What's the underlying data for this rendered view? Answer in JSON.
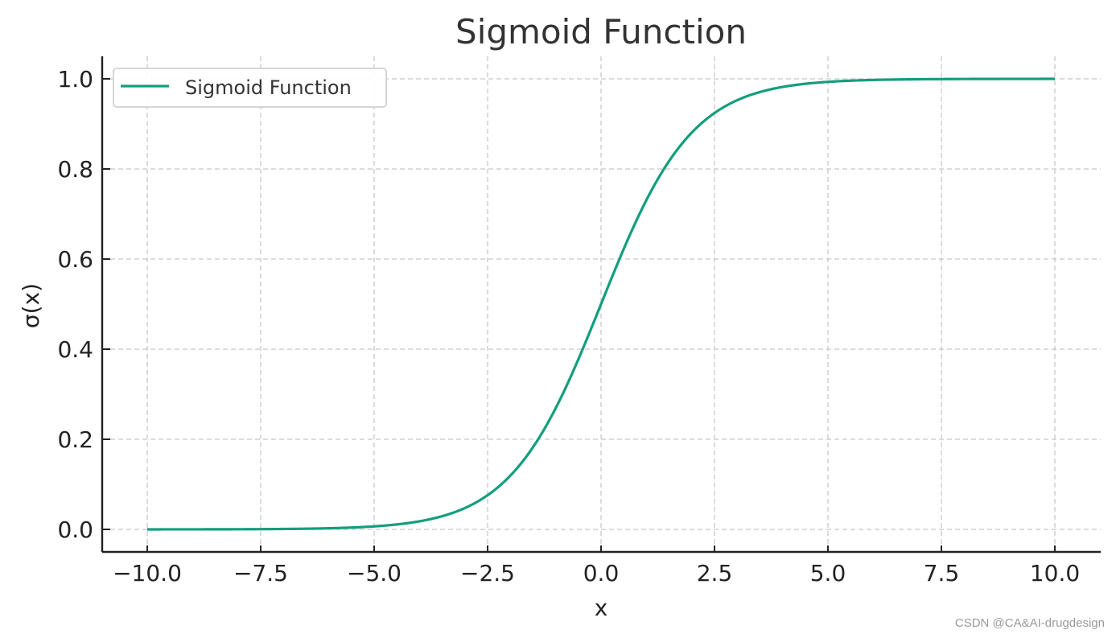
{
  "chart_data": {
    "type": "line",
    "title": "Sigmoid Function",
    "xlabel": "x",
    "ylabel": "σ(x)",
    "xlim": [
      -11,
      11
    ],
    "ylim": [
      -0.05,
      1.05
    ],
    "grid": true,
    "legend_position": "upper left",
    "x_ticks": [
      -10.0,
      -7.5,
      -5.0,
      -2.5,
      0.0,
      2.5,
      5.0,
      7.5,
      10.0
    ],
    "x_tick_labels": [
      "−10.0",
      "−7.5",
      "−5.0",
      "−2.5",
      "0.0",
      "2.5",
      "5.0",
      "7.5",
      "10.0"
    ],
    "y_ticks": [
      0.0,
      0.2,
      0.4,
      0.6,
      0.8,
      1.0
    ],
    "y_tick_labels": [
      "0.0",
      "0.2",
      "0.4",
      "0.6",
      "0.8",
      "1.0"
    ],
    "series": [
      {
        "name": "Sigmoid Function",
        "color": "#139e7e",
        "x": [
          -10,
          -7.5,
          -5,
          -4,
          -3,
          -2.5,
          -2,
          -1.5,
          -1,
          -0.5,
          0,
          0.5,
          1,
          1.5,
          2,
          2.5,
          3,
          4,
          5,
          7.5,
          10
        ],
        "y": [
          0.0,
          0.0006,
          0.0067,
          0.018,
          0.0474,
          0.0759,
          0.1192,
          0.1824,
          0.2689,
          0.3775,
          0.5,
          0.6225,
          0.7311,
          0.8176,
          0.8808,
          0.9241,
          0.9526,
          0.982,
          0.9933,
          0.9994,
          1.0
        ]
      }
    ]
  },
  "legend": {
    "label": "Sigmoid Function"
  },
  "watermark": "CSDN @CA&AI-drugdesign",
  "colors": {
    "line": "#139e7e",
    "grid": "#c8c8c8",
    "axis": "#222222"
  }
}
